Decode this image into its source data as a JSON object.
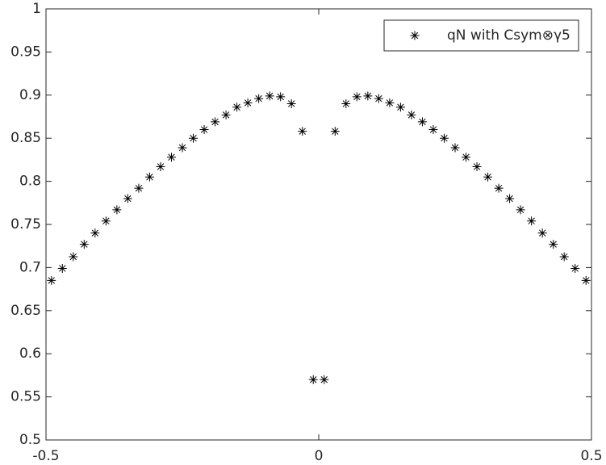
{
  "chart_data": {
    "type": "scatter",
    "x": [
      -0.49,
      -0.47,
      -0.45,
      -0.43,
      -0.41,
      -0.39,
      -0.37,
      -0.35,
      -0.33,
      -0.31,
      -0.29,
      -0.27,
      -0.25,
      -0.23,
      -0.21,
      -0.19,
      -0.17,
      -0.15,
      -0.13,
      -0.11,
      -0.09,
      -0.07,
      -0.05,
      -0.03,
      -0.01,
      0.01,
      0.03,
      0.05,
      0.07,
      0.09,
      0.11,
      0.13,
      0.15,
      0.17,
      0.19,
      0.21,
      0.23,
      0.25,
      0.27,
      0.29,
      0.31,
      0.33,
      0.35,
      0.37,
      0.39,
      0.41,
      0.43,
      0.45,
      0.47,
      0.49
    ],
    "series": [
      {
        "name": "qN with Csym⊗γ5",
        "color": "#000000",
        "values": [
          0.685,
          0.699,
          0.7125,
          0.727,
          0.74,
          0.754,
          0.767,
          0.78,
          0.792,
          0.805,
          0.817,
          0.828,
          0.839,
          0.85,
          0.86,
          0.869,
          0.877,
          0.886,
          0.891,
          0.896,
          0.899,
          0.898,
          0.89,
          0.858,
          0.57,
          0.57,
          0.858,
          0.89,
          0.898,
          0.899,
          0.896,
          0.891,
          0.886,
          0.877,
          0.869,
          0.86,
          0.85,
          0.839,
          0.828,
          0.817,
          0.805,
          0.792,
          0.78,
          0.767,
          0.754,
          0.74,
          0.727,
          0.7125,
          0.699,
          0.685
        ]
      }
    ],
    "xlim": [
      -0.5,
      0.5
    ],
    "xticks": [
      -0.5,
      0,
      0.5
    ],
    "ylim": [
      0.5,
      1
    ],
    "yticks": [
      0.5,
      0.55,
      0.6,
      0.65,
      0.7,
      0.75,
      0.8,
      0.85,
      0.9,
      0.95,
      1
    ],
    "grid": false,
    "legend": "northeast"
  }
}
